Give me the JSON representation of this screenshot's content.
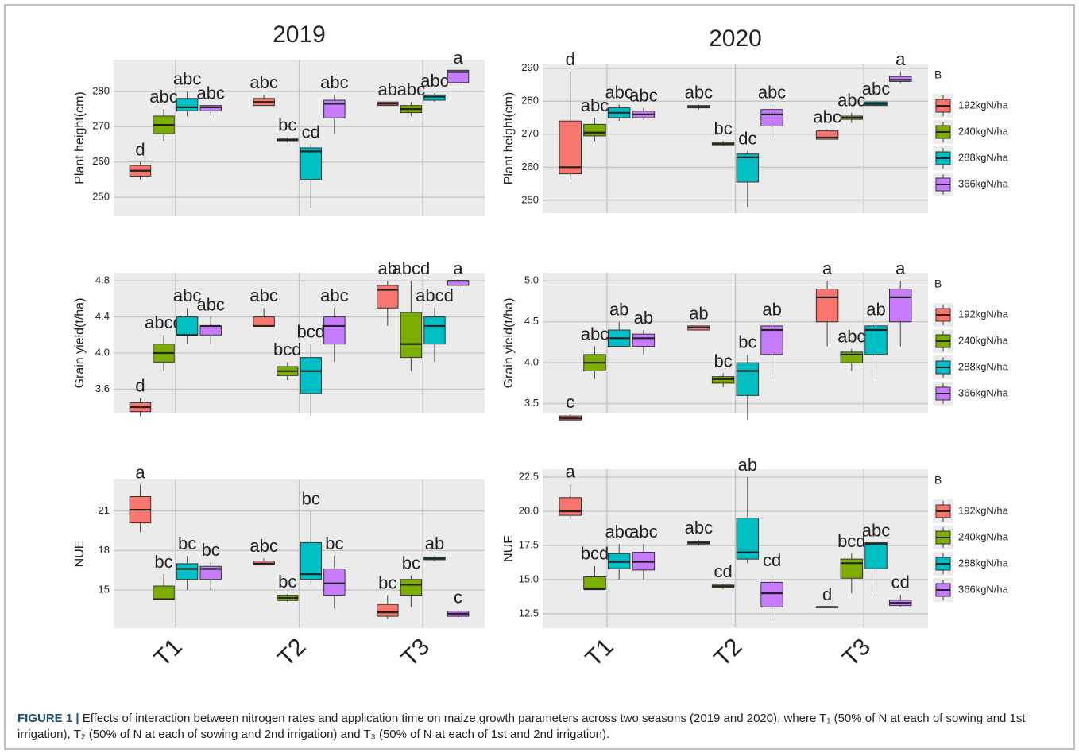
{
  "chart_data": [
    {
      "type": "box",
      "title": "2019",
      "ylabel": "Plant height(cm)",
      "ylim": [
        244.6,
        289
      ],
      "yticks": [
        250,
        260,
        270,
        280
      ],
      "grid": true,
      "series": [
        {
          "color": "#F8766D",
          "boxes": [
            [
              255,
              256,
              257.5,
              259,
              260
            ],
            [
              276,
              276,
              277,
              278,
              279
            ],
            [
              276,
              276,
              276.5,
              277,
              277
            ]
          ],
          "labels": [
            "d",
            "abc",
            "ab"
          ]
        },
        {
          "color": "#7CAE00",
          "boxes": [
            [
              266,
              268,
              270.5,
              273,
              275
            ],
            [
              265.5,
              266,
              266.3,
              266.5,
              267
            ],
            [
              273,
              274,
              275,
              276,
              277
            ]
          ],
          "labels": [
            "abc",
            "bc",
            "abc"
          ]
        },
        {
          "color": "#00BFC4",
          "boxes": [
            [
              273,
              274.5,
              275.5,
              278,
              280
            ],
            [
              247,
              255,
              263,
              264,
              265
            ],
            [
              277,
              277.5,
              278.5,
              279,
              279.5
            ]
          ],
          "labels": [
            "abc",
            "cd",
            "abc"
          ]
        },
        {
          "color": "#C77CFF",
          "boxes": [
            [
              273,
              274.5,
              275.5,
              276,
              276
            ],
            [
              268,
              272.5,
              276.5,
              277.5,
              279
            ],
            [
              281,
              282.5,
              285.5,
              286,
              286
            ]
          ],
          "labels": [
            "abc",
            "abc",
            "a"
          ]
        }
      ]
    },
    {
      "type": "box",
      "title": "2020",
      "ylabel": "Plant height(cm)",
      "ylim": [
        246.1,
        291.4
      ],
      "yticks": [
        250,
        260,
        270,
        280,
        290
      ],
      "grid": true,
      "legend": "right",
      "legend_title": "B",
      "series": [
        {
          "name": "192kgN/ha",
          "color": "#F8766D",
          "boxes": [
            [
              256,
              258,
              260,
              274,
              289
            ],
            [
              277.5,
              278,
              278.3,
              278.7,
              279
            ],
            [
              268.5,
              268.5,
              269,
              271,
              271.5
            ]
          ],
          "labels": [
            "d",
            "abc",
            "abc"
          ]
        },
        {
          "name": "240kgN/ha",
          "color": "#7CAE00",
          "boxes": [
            [
              268,
              269.5,
              270.5,
              273,
              275
            ],
            [
              266.5,
              266.8,
              267,
              267.5,
              268
            ],
            [
              273.5,
              274.5,
              275,
              275.5,
              276.5
            ]
          ],
          "labels": [
            "abc",
            "bc",
            "abc"
          ]
        },
        {
          "name": "288kgN/ha",
          "color": "#00BFC4",
          "boxes": [
            [
              274,
              275,
              276.5,
              278,
              279
            ],
            [
              248,
              255.5,
              263,
              264,
              265
            ],
            [
              278.5,
              278.7,
              279.2,
              279.8,
              280
            ]
          ],
          "labels": [
            "abc",
            "dc",
            "abc"
          ]
        },
        {
          "name": "366kgN/ha",
          "color": "#C77CFF",
          "boxes": [
            [
              274.5,
              275,
              276,
              277,
              278
            ],
            [
              269,
              272.5,
              276,
              277.5,
              279
            ],
            [
              285.5,
              286,
              286.5,
              287.5,
              289
            ]
          ],
          "labels": [
            "abc",
            "abc",
            "a"
          ]
        }
      ]
    },
    {
      "type": "box",
      "ylabel": "Grain yield(t/ha)",
      "ylim": [
        3.33,
        4.89
      ],
      "yticks": [
        3.6,
        {
          "value": 4,
          "label": "4.0"
        },
        4.4,
        4.8
      ],
      "grid": true,
      "series": [
        {
          "color": "#F8766D",
          "boxes": [
            [
              3.3,
              3.35,
              3.4,
              3.45,
              3.5
            ],
            [
              4.3,
              4.3,
              4.3,
              4.4,
              4.5
            ],
            [
              4.3,
              4.5,
              4.7,
              4.75,
              4.8
            ]
          ],
          "labels": [
            "d",
            "abc",
            "ab"
          ]
        },
        {
          "color": "#7CAE00",
          "boxes": [
            [
              3.8,
              3.9,
              4.0,
              4.1,
              4.2
            ],
            [
              3.7,
              3.75,
              3.8,
              3.85,
              3.9
            ],
            [
              3.8,
              3.95,
              4.1,
              4.45,
              4.8
            ]
          ],
          "labels": [
            "abcd",
            "bcd",
            "abcd"
          ]
        },
        {
          "color": "#00BFC4",
          "boxes": [
            [
              4.1,
              4.2,
              4.2,
              4.4,
              4.5
            ],
            [
              3.3,
              3.55,
              3.8,
              3.95,
              4.1
            ],
            [
              3.9,
              4.1,
              4.3,
              4.4,
              4.5
            ]
          ],
          "labels": [
            "abc",
            "bcd",
            "abcd"
          ]
        },
        {
          "color": "#C77CFF",
          "boxes": [
            [
              4.1,
              4.2,
              4.3,
              4.3,
              4.4
            ],
            [
              3.9,
              4.1,
              4.3,
              4.4,
              4.5
            ],
            [
              4.7,
              4.75,
              4.8,
              4.8,
              4.8
            ]
          ],
          "labels": [
            "abc",
            "abc",
            "a"
          ]
        }
      ]
    },
    {
      "type": "box",
      "ylabel": "Grain yield(t/ha)",
      "ylim": [
        3.38,
        5.1
      ],
      "yticks": [
        3.5,
        {
          "value": 4,
          "label": "4.0"
        },
        4.5,
        {
          "value": 5,
          "label": "5.0"
        }
      ],
      "grid": true,
      "legend": "right",
      "legend_title": "B",
      "series": [
        {
          "name": "192kgN/ha",
          "color": "#F8766D",
          "boxes": [
            [
              3.3,
              3.3,
              3.32,
              3.35,
              3.37
            ],
            [
              4.4,
              4.4,
              4.43,
              4.45,
              4.45
            ],
            [
              4.2,
              4.5,
              4.8,
              4.9,
              5.0
            ]
          ],
          "labels": [
            "c",
            "ab",
            "a"
          ]
        },
        {
          "name": "240kgN/ha",
          "color": "#7CAE00",
          "boxes": [
            [
              3.8,
              3.9,
              4.0,
              4.1,
              4.2
            ],
            [
              3.7,
              3.75,
              3.8,
              3.83,
              3.87
            ],
            [
              3.9,
              4.0,
              4.1,
              4.13,
              4.17
            ]
          ],
          "labels": [
            "abc",
            "bc",
            "abc"
          ]
        },
        {
          "name": "288kgN/ha",
          "color": "#00BFC4",
          "boxes": [
            [
              4.2,
              4.2,
              4.3,
              4.4,
              4.5
            ],
            [
              3.3,
              3.6,
              3.9,
              4.0,
              4.1
            ],
            [
              3.8,
              4.1,
              4.4,
              4.45,
              4.5
            ]
          ],
          "labels": [
            "ab",
            "bc",
            "ab"
          ]
        },
        {
          "name": "366kgN/ha",
          "color": "#C77CFF",
          "boxes": [
            [
              4.1,
              4.2,
              4.3,
              4.35,
              4.4
            ],
            [
              3.8,
              4.1,
              4.4,
              4.45,
              4.5
            ],
            [
              4.2,
              4.5,
              4.8,
              4.9,
              5.0
            ]
          ],
          "labels": [
            "ab",
            "ab",
            "a"
          ]
        }
      ]
    },
    {
      "type": "box",
      "ylabel": "NUE",
      "categories": [
        "T1",
        "T2",
        "T3"
      ],
      "ylim": [
        12.1,
        23.4
      ],
      "yticks": [
        15,
        18,
        21
      ],
      "grid": true,
      "series": [
        {
          "color": "#F8766D",
          "boxes": [
            [
              19.4,
              20.1,
              21.1,
              22.1,
              23.0
            ],
            [
              16.9,
              16.9,
              17.0,
              17.2,
              17.4
            ],
            [
              12.8,
              13.0,
              13.3,
              13.9,
              14.6
            ]
          ],
          "labels": [
            "a",
            "abc",
            "bc"
          ]
        },
        {
          "color": "#7CAE00",
          "boxes": [
            [
              14.3,
              14.3,
              14.3,
              15.3,
              16.2
            ],
            [
              14.1,
              14.2,
              14.4,
              14.6,
              14.7
            ],
            [
              13.7,
              14.6,
              15.4,
              15.8,
              16.1
            ]
          ],
          "labels": [
            "bc",
            "bc",
            "bc"
          ]
        },
        {
          "color": "#00BFC4",
          "boxes": [
            [
              15.0,
              15.8,
              16.6,
              17.0,
              17.6
            ],
            [
              15.5,
              15.8,
              16.2,
              18.6,
              21.0
            ],
            [
              17.2,
              17.3,
              17.4,
              17.5,
              17.6
            ]
          ],
          "labels": [
            "bc",
            "bc",
            "ab"
          ]
        },
        {
          "color": "#C77CFF",
          "boxes": [
            [
              15.0,
              15.8,
              16.6,
              16.8,
              17.1
            ],
            [
              13.6,
              14.6,
              15.5,
              16.6,
              17.6
            ],
            [
              12.9,
              13.0,
              13.2,
              13.4,
              13.5
            ]
          ],
          "labels": [
            "bc",
            "bc",
            "c"
          ]
        }
      ]
    },
    {
      "type": "box",
      "ylabel": "NUE",
      "categories": [
        "T1",
        "T2",
        "T3"
      ],
      "ylim": [
        11.45,
        23.08
      ],
      "yticks": [
        12.5,
        {
          "value": 15,
          "label": "15.0"
        },
        17.5,
        {
          "value": 20,
          "label": "20.0"
        },
        22.5
      ],
      "grid": true,
      "legend": "right",
      "legend_title": "B",
      "series": [
        {
          "name": "192kgN/ha",
          "color": "#F8766D",
          "boxes": [
            [
              19.4,
              19.7,
              20.0,
              21.0,
              22.0
            ],
            [
              17.5,
              17.6,
              17.7,
              17.8,
              17.9
            ],
            [
              13.0,
              13.0,
              13.0,
              13.0,
              13.0
            ]
          ],
          "labels": [
            "a",
            "abc",
            "d"
          ]
        },
        {
          "name": "240kgN/ha",
          "color": "#7CAE00",
          "boxes": [
            [
              14.3,
              14.3,
              14.3,
              15.2,
              16.0
            ],
            [
              14.3,
              14.4,
              14.5,
              14.6,
              14.7
            ],
            [
              14.0,
              15.1,
              16.2,
              16.5,
              16.9
            ]
          ],
          "labels": [
            "bcd",
            "cd",
            "bcd"
          ]
        },
        {
          "name": "288kgN/ha",
          "color": "#00BFC4",
          "boxes": [
            [
              15.0,
              15.8,
              16.3,
              16.9,
              17.6
            ],
            [
              16.2,
              16.5,
              17.0,
              19.5,
              22.5
            ],
            [
              14.0,
              15.8,
              17.6,
              17.7,
              17.7
            ]
          ],
          "labels": [
            "abc",
            "ab",
            "abc"
          ]
        },
        {
          "name": "366kgN/ha",
          "color": "#C77CFF",
          "boxes": [
            [
              15.0,
              15.7,
              16.3,
              17.0,
              17.6
            ],
            [
              12.0,
              13.0,
              14.0,
              14.8,
              15.5
            ],
            [
              13.0,
              13.1,
              13.3,
              13.5,
              13.9
            ]
          ],
          "labels": [
            "abc",
            "cd",
            "cd"
          ]
        }
      ]
    }
  ],
  "caption": {
    "label": "FIGURE 1 |",
    "text": "Effects of interaction between nitrogen rates and application time on maize growth parameters across two seasons (2019 and 2020), where T₁ (50% of N at each of sowing and 1st irrigation), T₂ (50% of N at each of sowing and 2nd irrigation) and T₃ (50% of N at each of 1st and 2nd irrigation)."
  }
}
